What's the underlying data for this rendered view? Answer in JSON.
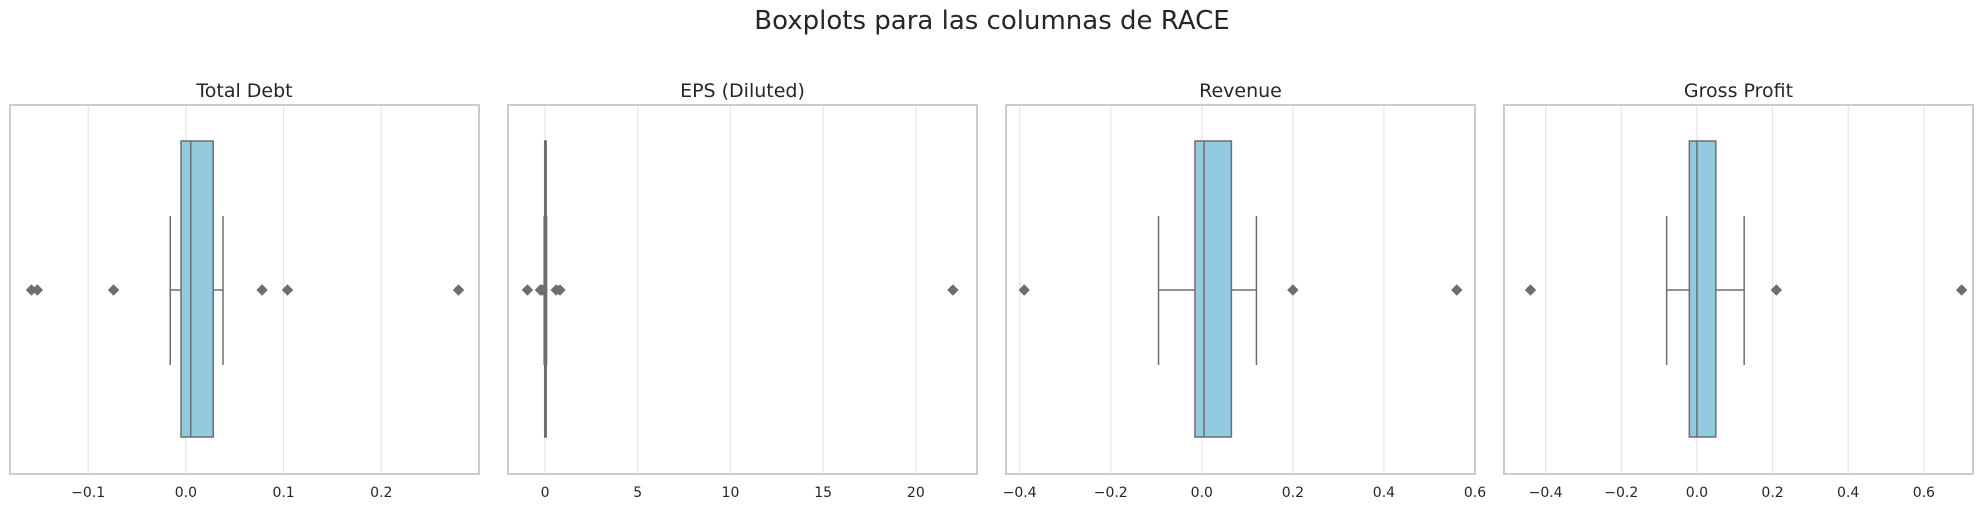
{
  "figure": {
    "suptitle": "Boxplots para las columnas de RACE",
    "colors": {
      "box_fill": "#92cae0",
      "box_edge": "#6e6e6e",
      "grid": "#e5e5e5",
      "frame": "#cccccc",
      "text": "#262626",
      "tick_label": "#262626"
    }
  },
  "chart_data": [
    {
      "type": "box",
      "title": "Total Debt",
      "orientation": "horizontal",
      "grid": true,
      "xlim": [
        -0.18,
        0.3
      ],
      "xticks": [
        -0.1,
        0.0,
        0.1,
        0.2
      ],
      "xtick_labels": [
        "−0.1",
        "0.0",
        "0.1",
        "0.2"
      ],
      "whisker_low": -0.016,
      "q1": -0.005,
      "median": 0.005,
      "q3": 0.028,
      "whisker_high": 0.038,
      "outliers": [
        -0.158,
        -0.152,
        -0.074,
        0.078,
        0.104,
        0.279
      ]
    },
    {
      "type": "box",
      "title": "EPS (Diluted)",
      "orientation": "horizontal",
      "grid": true,
      "xlim": [
        -2.0,
        23.3
      ],
      "xticks": [
        0,
        5,
        10,
        15,
        20
      ],
      "xtick_labels": [
        "0",
        "5",
        "10",
        "15",
        "20"
      ],
      "whisker_low": -0.05,
      "q1": -0.02,
      "median": 0.0,
      "q3": 0.04,
      "whisker_high": 0.08,
      "outliers": [
        -0.95,
        -0.25,
        -0.15,
        0.6,
        0.8,
        22.0
      ]
    },
    {
      "type": "box",
      "title": "Revenue",
      "orientation": "horizontal",
      "grid": true,
      "xlim": [
        -0.43,
        0.6
      ],
      "xticks": [
        -0.4,
        -0.2,
        0.0,
        0.2,
        0.4,
        0.6
      ],
      "xtick_labels": [
        "−0.4",
        "−0.2",
        "0.0",
        "0.2",
        "0.4",
        "0.6"
      ],
      "whisker_low": -0.095,
      "q1": -0.015,
      "median": 0.005,
      "q3": 0.065,
      "whisker_high": 0.12,
      "outliers": [
        -0.39,
        0.2,
        0.56
      ]
    },
    {
      "type": "box",
      "title": "Gross Profit",
      "orientation": "horizontal",
      "grid": true,
      "xlim": [
        -0.51,
        0.73
      ],
      "xticks": [
        -0.4,
        -0.2,
        0.0,
        0.2,
        0.4,
        0.6
      ],
      "xtick_labels": [
        "−0.4",
        "−0.2",
        "0.0",
        "0.2",
        "0.4",
        "0.6"
      ],
      "whisker_low": -0.08,
      "q1": -0.02,
      "median": 0.0,
      "q3": 0.05,
      "whisker_high": 0.125,
      "outliers": [
        -0.44,
        0.21,
        0.7
      ]
    }
  ]
}
